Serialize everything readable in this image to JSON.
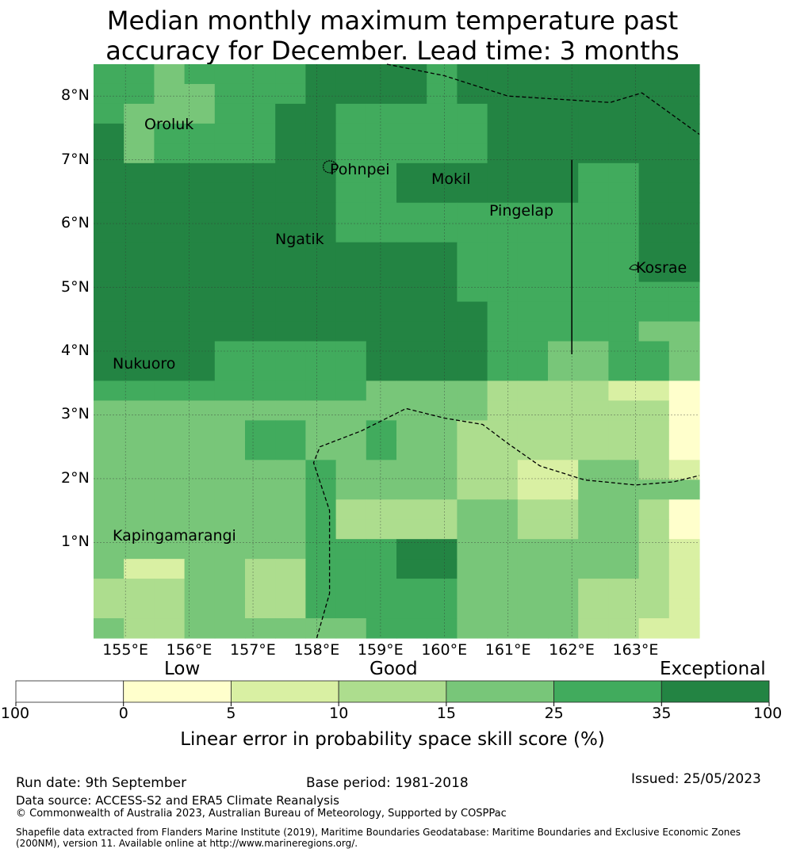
{
  "title_line1": "Median monthly maximum temperature past",
  "title_line2": "accuracy for December. Lead time: 3 months",
  "map": {
    "lon_range": [
      154.5,
      164.0
    ],
    "lat_range": [
      -0.5,
      8.5
    ],
    "lon_ticks": [
      "155°E",
      "156°E",
      "157°E",
      "158°E",
      "159°E",
      "160°E",
      "161°E",
      "162°E",
      "163°E"
    ],
    "lat_ticks": [
      "1°N",
      "2°N",
      "3°N",
      "4°N",
      "5°N",
      "6°N",
      "7°N",
      "8°N"
    ],
    "places": [
      {
        "name": "Oroluk",
        "lon": 155.3,
        "lat": 7.55
      },
      {
        "name": "Pohnpei",
        "lon": 158.2,
        "lat": 6.85
      },
      {
        "name": "Mokil",
        "lon": 159.8,
        "lat": 6.7
      },
      {
        "name": "Pingelap",
        "lon": 160.7,
        "lat": 6.2
      },
      {
        "name": "Ngatik",
        "lon": 157.35,
        "lat": 5.75
      },
      {
        "name": "Kosrae",
        "lon": 163.0,
        "lat": 5.3
      },
      {
        "name": "Nukuoro",
        "lon": 154.8,
        "lat": 3.8
      },
      {
        "name": "Kapingamarangi",
        "lon": 154.8,
        "lat": 1.1
      }
    ],
    "grid_values": [
      [
        25,
        25,
        15,
        25,
        25,
        25,
        25,
        35,
        35,
        35,
        35,
        25,
        35,
        35,
        35,
        35,
        35,
        35,
        35,
        35
      ],
      [
        25,
        25,
        15,
        15,
        25,
        25,
        25,
        35,
        35,
        35,
        35,
        25,
        35,
        35,
        35,
        35,
        35,
        35,
        35,
        35
      ],
      [
        25,
        15,
        15,
        15,
        25,
        25,
        35,
        35,
        25,
        25,
        25,
        25,
        25,
        35,
        35,
        35,
        35,
        35,
        35,
        35
      ],
      [
        35,
        15,
        25,
        25,
        25,
        25,
        35,
        35,
        25,
        25,
        25,
        25,
        25,
        35,
        35,
        35,
        35,
        35,
        35,
        35
      ],
      [
        35,
        15,
        25,
        25,
        25,
        25,
        35,
        35,
        25,
        25,
        25,
        25,
        25,
        35,
        35,
        35,
        35,
        35,
        35,
        35
      ],
      [
        35,
        35,
        35,
        35,
        35,
        35,
        35,
        35,
        25,
        25,
        35,
        35,
        35,
        35,
        35,
        35,
        25,
        25,
        35,
        35
      ],
      [
        35,
        35,
        35,
        35,
        35,
        35,
        35,
        35,
        25,
        25,
        35,
        35,
        35,
        35,
        35,
        35,
        25,
        25,
        35,
        35
      ],
      [
        35,
        35,
        35,
        35,
        35,
        35,
        35,
        35,
        25,
        25,
        25,
        25,
        25,
        25,
        25,
        25,
        25,
        25,
        35,
        35
      ],
      [
        35,
        35,
        35,
        35,
        35,
        35,
        35,
        35,
        25,
        25,
        25,
        25,
        25,
        25,
        25,
        25,
        25,
        25,
        35,
        35
      ],
      [
        35,
        35,
        35,
        35,
        35,
        35,
        35,
        35,
        35,
        35,
        35,
        35,
        25,
        25,
        25,
        25,
        25,
        25,
        35,
        35
      ],
      [
        35,
        35,
        35,
        35,
        35,
        35,
        35,
        35,
        35,
        35,
        35,
        35,
        25,
        25,
        25,
        25,
        25,
        25,
        35,
        35
      ],
      [
        35,
        35,
        35,
        35,
        35,
        35,
        35,
        35,
        35,
        35,
        35,
        35,
        25,
        25,
        25,
        25,
        25,
        25,
        25,
        25
      ],
      [
        35,
        35,
        35,
        35,
        35,
        35,
        35,
        35,
        35,
        35,
        35,
        35,
        35,
        25,
        25,
        25,
        25,
        25,
        25,
        25
      ],
      [
        35,
        35,
        35,
        35,
        35,
        35,
        35,
        35,
        35,
        35,
        35,
        35,
        35,
        25,
        25,
        25,
        25,
        25,
        15,
        15
      ],
      [
        35,
        35,
        35,
        35,
        25,
        25,
        25,
        25,
        25,
        35,
        35,
        35,
        35,
        25,
        25,
        15,
        15,
        25,
        25,
        15
      ],
      [
        35,
        35,
        35,
        35,
        25,
        25,
        25,
        25,
        25,
        35,
        35,
        35,
        35,
        25,
        25,
        15,
        15,
        25,
        25,
        15
      ],
      [
        25,
        25,
        25,
        25,
        25,
        25,
        25,
        25,
        25,
        15,
        15,
        15,
        15,
        10,
        10,
        10,
        10,
        5,
        5,
        0
      ],
      [
        15,
        15,
        15,
        15,
        15,
        15,
        15,
        15,
        15,
        15,
        15,
        15,
        15,
        10,
        10,
        10,
        10,
        10,
        10,
        0
      ],
      [
        15,
        15,
        15,
        15,
        15,
        25,
        25,
        15,
        15,
        25,
        15,
        15,
        10,
        10,
        10,
        10,
        10,
        10,
        10,
        0
      ],
      [
        15,
        15,
        15,
        15,
        15,
        25,
        25,
        15,
        15,
        25,
        15,
        15,
        10,
        10,
        10,
        10,
        10,
        10,
        10,
        0
      ],
      [
        15,
        15,
        15,
        15,
        15,
        15,
        15,
        25,
        15,
        15,
        15,
        15,
        10,
        10,
        5,
        5,
        15,
        15,
        10,
        5
      ],
      [
        15,
        15,
        15,
        15,
        15,
        15,
        15,
        25,
        15,
        15,
        15,
        15,
        10,
        10,
        5,
        5,
        15,
        15,
        15,
        15
      ],
      [
        15,
        15,
        15,
        15,
        15,
        15,
        15,
        25,
        10,
        10,
        10,
        10,
        15,
        15,
        10,
        10,
        15,
        15,
        10,
        0
      ],
      [
        15,
        15,
        15,
        15,
        15,
        15,
        15,
        25,
        10,
        10,
        10,
        10,
        15,
        15,
        10,
        10,
        15,
        15,
        10,
        0
      ],
      [
        15,
        15,
        15,
        15,
        15,
        15,
        15,
        25,
        25,
        25,
        35,
        35,
        15,
        15,
        15,
        15,
        15,
        15,
        10,
        5
      ],
      [
        15,
        5,
        5,
        15,
        15,
        10,
        10,
        25,
        25,
        25,
        35,
        35,
        15,
        15,
        15,
        15,
        15,
        15,
        10,
        5
      ],
      [
        10,
        10,
        10,
        15,
        15,
        10,
        10,
        25,
        25,
        25,
        25,
        25,
        15,
        15,
        15,
        15,
        10,
        10,
        10,
        5
      ],
      [
        10,
        10,
        10,
        15,
        15,
        10,
        10,
        25,
        25,
        25,
        25,
        25,
        15,
        15,
        15,
        15,
        10,
        10,
        10,
        5
      ],
      [
        15,
        10,
        10,
        15,
        15,
        15,
        15,
        15,
        15,
        25,
        25,
        25,
        15,
        15,
        15,
        15,
        10,
        10,
        5,
        5
      ]
    ],
    "borders": [
      [
        [
          159.1,
          8.5
        ],
        [
          160.0,
          8.32
        ],
        [
          161.0,
          8.0
        ],
        [
          162.6,
          7.9
        ],
        [
          163.1,
          8.05
        ],
        [
          164.0,
          7.4
        ]
      ],
      [
        [
          158.0,
          -0.5
        ],
        [
          158.2,
          0.2
        ],
        [
          158.2,
          1.5
        ],
        [
          157.95,
          2.25
        ],
        [
          158.05,
          2.5
        ],
        [
          158.7,
          2.75
        ],
        [
          159.4,
          3.1
        ],
        [
          160.0,
          2.95
        ],
        [
          160.6,
          2.85
        ],
        [
          161.0,
          2.55
        ],
        [
          161.5,
          2.2
        ],
        [
          162.2,
          1.98
        ],
        [
          163.0,
          1.9
        ],
        [
          163.6,
          1.95
        ],
        [
          164.0,
          2.05
        ]
      ]
    ],
    "solid_line": [
      [
        162.0,
        7.0
      ],
      [
        162.0,
        3.95
      ]
    ]
  },
  "colorbar": {
    "categories": [
      "Low",
      "Good",
      "Exceptional"
    ],
    "bounds": [
      -100,
      0,
      5,
      10,
      15,
      25,
      35,
      100
    ],
    "tick_labels": [
      "-100",
      "0",
      "5",
      "10",
      "15",
      "25",
      "35",
      "100"
    ],
    "colors": [
      "#ffffff",
      "#ffffcc",
      "#d9f0a3",
      "#addd8e",
      "#78c679",
      "#41ab5d",
      "#238443"
    ],
    "label": "Linear error in probability space skill score (%)"
  },
  "footer": {
    "run_date": "Run date: 9th September",
    "base_period": "Base period: 1981-2018",
    "issued": "Issued: 25/05/2023",
    "data_source": "Data source: ACCESS-S2 and ERA5 Climate Reanalysis",
    "copyright": "© Commonwealth of Australia 2023, Australian Bureau of Meteorology, Supported by COSPPac",
    "shapefile_line1": "Shapefile data extracted from Flanders Marine Institute (2019), Maritime Boundaries Geodatabase: Maritime Boundaries and Exclusive Economic Zones",
    "shapefile_line2": "(200NM), version 11. Available online at http://www.marineregions.org/."
  }
}
